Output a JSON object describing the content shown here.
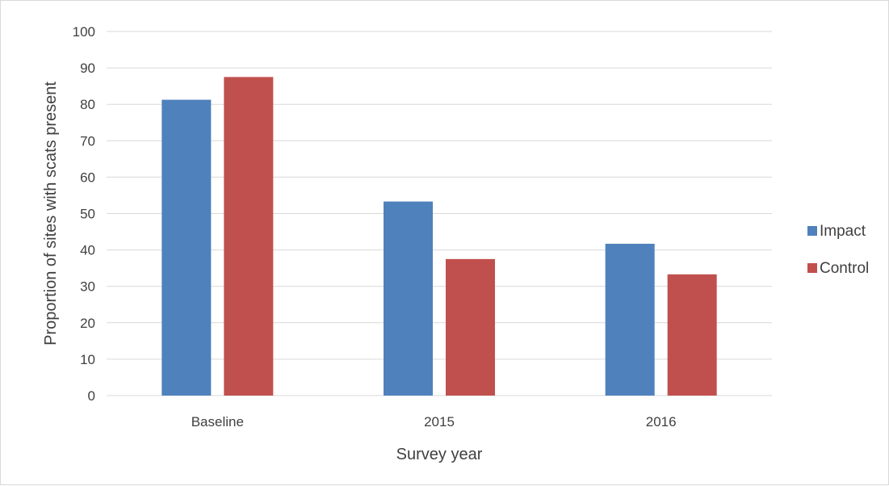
{
  "chart_data": {
    "type": "bar",
    "title": "",
    "xlabel": "Survey year",
    "ylabel": "Proportion of sites with scats present",
    "categories": [
      "Baseline",
      "2015",
      "2016"
    ],
    "series": [
      {
        "name": "Impact",
        "color": "#4f81bd",
        "values": [
          81.25,
          53.3,
          41.7
        ]
      },
      {
        "name": "Control",
        "color": "#c0504d",
        "values": [
          87.5,
          37.5,
          33.3
        ]
      }
    ],
    "ylim": [
      0,
      100
    ],
    "yticks": [
      0,
      10,
      20,
      30,
      40,
      50,
      60,
      70,
      80,
      90,
      100
    ],
    "grid": true,
    "gridColor": "#d9d9d9",
    "legend_position": "right"
  }
}
